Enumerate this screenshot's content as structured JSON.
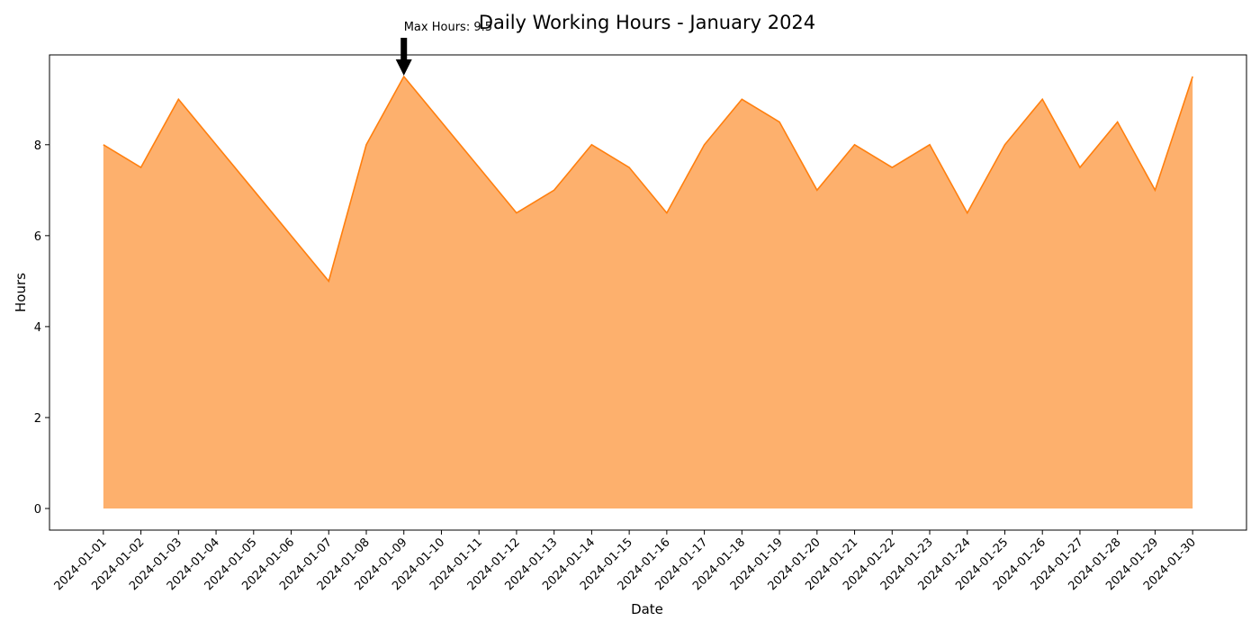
{
  "chart_data": {
    "type": "area",
    "title": "Daily Working Hours - January 2024",
    "xlabel": "Date",
    "ylabel": "Hours",
    "x": [
      "2024-01-01",
      "2024-01-02",
      "2024-01-03",
      "2024-01-04",
      "2024-01-05",
      "2024-01-06",
      "2024-01-07",
      "2024-01-08",
      "2024-01-09",
      "2024-01-10",
      "2024-01-11",
      "2024-01-12",
      "2024-01-13",
      "2024-01-14",
      "2024-01-15",
      "2024-01-16",
      "2024-01-17",
      "2024-01-18",
      "2024-01-19",
      "2024-01-20",
      "2024-01-21",
      "2024-01-22",
      "2024-01-23",
      "2024-01-24",
      "2024-01-25",
      "2024-01-26",
      "2024-01-27",
      "2024-01-28",
      "2024-01-29",
      "2024-01-30"
    ],
    "series": [
      {
        "values": [
          8,
          7.5,
          9,
          8,
          7,
          6,
          5,
          8,
          9.5,
          8.5,
          7.5,
          6.5,
          7,
          8,
          7.5,
          6.5,
          8,
          9,
          8.5,
          7,
          8,
          7.5,
          8,
          6.5,
          8,
          9,
          7.5,
          8.5,
          7,
          9.5
        ]
      }
    ],
    "ylim": [
      -0.475,
      9.975
    ],
    "yticks": [
      0,
      2,
      4,
      6,
      8
    ],
    "grid": false,
    "colors": {
      "fill": "#fdb06d",
      "line": "#ff7f0e",
      "annotation": "#000000"
    },
    "annotation": {
      "text": "Max Hours: 9.5",
      "x": "2024-01-09",
      "y": 9.5
    }
  }
}
